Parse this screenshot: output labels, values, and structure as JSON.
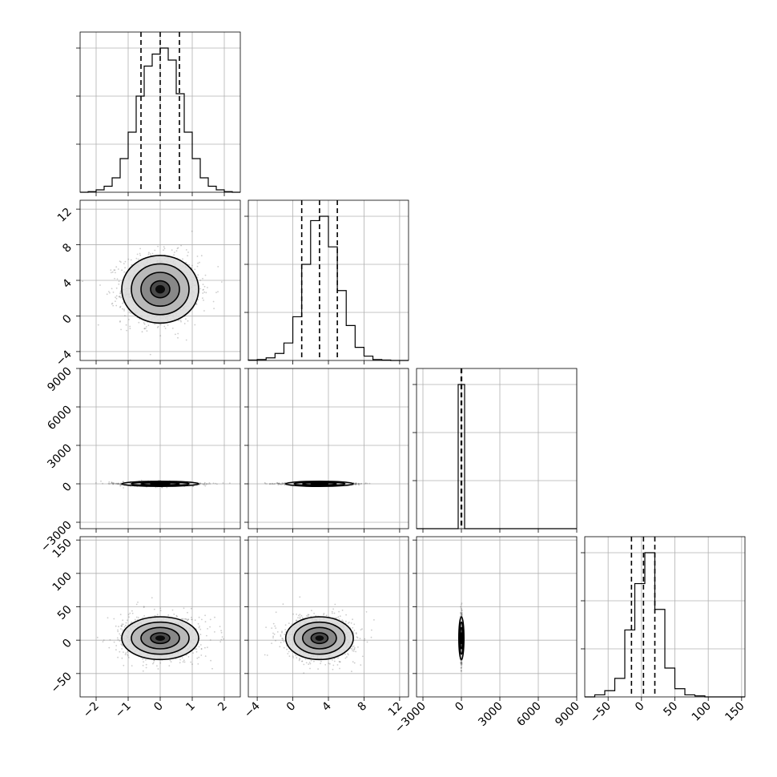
{
  "chart_data": {
    "type": "corner",
    "parameters": [
      {
        "range": [
          -2.5,
          2.5
        ],
        "ticks": [
          -2,
          -1,
          0,
          1,
          2
        ],
        "tick_labels": [
          "−2",
          "−1",
          "0",
          "1",
          "2"
        ],
        "mean": 0,
        "sd": 0.6,
        "quantiles": [
          -0.6,
          0,
          0.6
        ]
      },
      {
        "range": [
          -5,
          13
        ],
        "ticks": [
          -4,
          0,
          4,
          8,
          12
        ],
        "tick_labels": [
          "−4",
          "0",
          "4",
          "8",
          "12"
        ],
        "mean": 3,
        "sd": 1.9,
        "quantiles": [
          1.0,
          3.0,
          5.0
        ]
      },
      {
        "range": [
          -3500,
          9000
        ],
        "ticks": [
          -3000,
          0,
          3000,
          6000,
          9000
        ],
        "tick_labels": [
          "−3000",
          "0",
          "3000",
          "6000",
          "9000"
        ],
        "mean": 0,
        "sd": 35,
        "quantiles": [
          -20,
          0,
          20
        ]
      },
      {
        "range": [
          -85,
          155
        ],
        "ticks": [
          -50,
          0,
          50,
          100,
          150
        ],
        "tick_labels": [
          "−50",
          "0",
          "50",
          "100",
          "150"
        ],
        "mean": 3,
        "sd": 16,
        "quantiles": [
          -15,
          3,
          20
        ]
      }
    ],
    "histograms": [
      {
        "param": 0,
        "bins": [
          -2.5,
          -2.25,
          -2.0,
          -1.75,
          -1.5,
          -1.25,
          -1.0,
          -0.75,
          -0.5,
          -0.25,
          0.0,
          0.25,
          0.5,
          0.75,
          1.0,
          1.25,
          1.5,
          1.75,
          2.0,
          2.25,
          2.5
        ],
        "counts": [
          0,
          0.5,
          2,
          5,
          12,
          28,
          50,
          80,
          105,
          115,
          120,
          110,
          82,
          50,
          28,
          12,
          5,
          2,
          0.5,
          0
        ]
      },
      {
        "param": 1,
        "bins": [
          -5,
          -4,
          -3,
          -2,
          -1,
          0,
          1,
          2,
          3,
          4,
          5,
          6,
          7,
          8,
          9,
          10,
          11,
          12,
          13
        ],
        "counts": [
          0.5,
          1,
          3,
          8,
          20,
          50,
          110,
          160,
          165,
          130,
          80,
          40,
          15,
          5,
          1,
          0.5,
          0,
          0
        ]
      },
      {
        "param": 2,
        "bins": [
          -3500,
          -250,
          250,
          9000
        ],
        "counts": [
          0,
          130,
          0
        ]
      },
      {
        "param": 3,
        "bins": [
          -85,
          -70,
          -55,
          -40,
          -25,
          -10,
          5,
          20,
          35,
          50,
          65,
          80,
          95,
          110,
          125,
          140,
          155
        ],
        "counts": [
          0,
          2,
          6,
          18,
          65,
          110,
          140,
          85,
          28,
          8,
          2,
          1,
          0,
          0,
          0,
          0
        ]
      }
    ],
    "scatter_pairs": [
      {
        "x_param": 0,
        "y_param": 1
      },
      {
        "x_param": 0,
        "y_param": 2
      },
      {
        "x_param": 1,
        "y_param": 2
      },
      {
        "x_param": 0,
        "y_param": 3
      },
      {
        "x_param": 1,
        "y_param": 3
      },
      {
        "x_param": 2,
        "y_param": 3
      }
    ],
    "grid": true,
    "colors": {
      "line": "#000000",
      "grid": "#b0b0b0",
      "points": "#6e6e6e"
    }
  }
}
